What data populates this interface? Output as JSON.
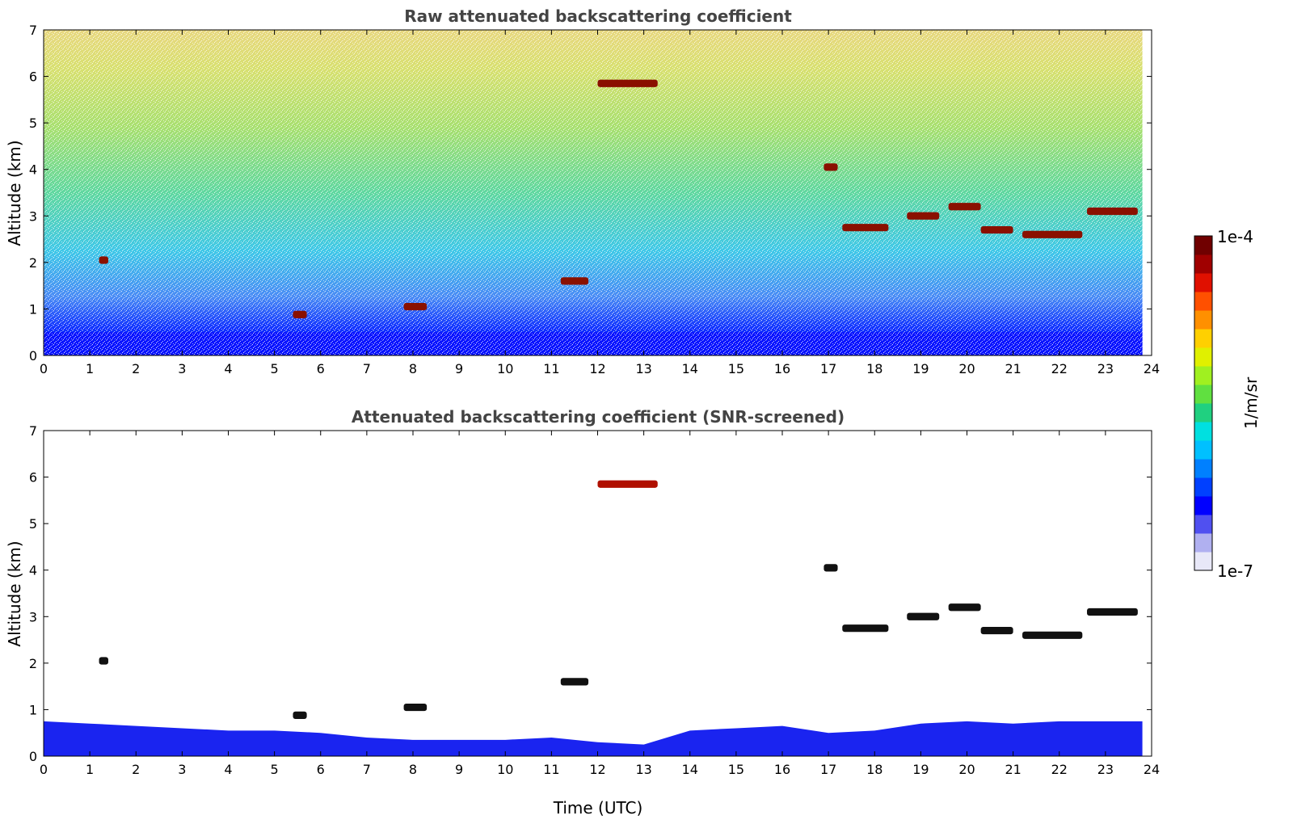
{
  "chart_data": [
    {
      "type": "heatmap",
      "title": "Raw attenuated backscattering coefficient",
      "xlabel": "",
      "ylabel": "Altitude (km)",
      "xlim": [
        0,
        24
      ],
      "ylim": [
        0,
        7
      ],
      "xticks": [
        "0",
        "1",
        "2",
        "3",
        "4",
        "5",
        "6",
        "7",
        "8",
        "9",
        "10",
        "11",
        "12",
        "13",
        "14",
        "15",
        "16",
        "17",
        "18",
        "19",
        "20",
        "21",
        "22",
        "23",
        "24"
      ],
      "yticks": [
        "0",
        "1",
        "2",
        "3",
        "4",
        "5",
        "6",
        "7"
      ],
      "data_end_time": 23.8,
      "features": [
        {
          "t0": 12.0,
          "t1": 13.3,
          "z": 5.85,
          "level": "high"
        },
        {
          "t0": 1.2,
          "t1": 1.4,
          "z": 2.05,
          "level": "high"
        },
        {
          "t0": 5.4,
          "t1": 5.7,
          "z": 0.88,
          "level": "high"
        },
        {
          "t0": 7.8,
          "t1": 8.3,
          "z": 1.05,
          "level": "high"
        },
        {
          "t0": 11.2,
          "t1": 11.8,
          "z": 1.6,
          "level": "high"
        },
        {
          "t0": 16.9,
          "t1": 17.2,
          "z": 4.05,
          "level": "high"
        },
        {
          "t0": 17.3,
          "t1": 18.3,
          "z": 2.75,
          "level": "high"
        },
        {
          "t0": 18.7,
          "t1": 19.4,
          "z": 3.0,
          "level": "high"
        },
        {
          "t0": 19.6,
          "t1": 20.3,
          "z": 3.2,
          "level": "high"
        },
        {
          "t0": 20.3,
          "t1": 21.0,
          "z": 2.7,
          "level": "high"
        },
        {
          "t0": 21.2,
          "t1": 22.5,
          "z": 2.6,
          "level": "high"
        },
        {
          "t0": 22.6,
          "t1": 23.7,
          "z": 3.1,
          "level": "high"
        }
      ]
    },
    {
      "type": "heatmap",
      "title": "Attenuated backscattering coefficient (SNR-screened)",
      "xlabel": "Time (UTC)",
      "ylabel": "Altitude (km)",
      "xlim": [
        0,
        24
      ],
      "ylim": [
        0,
        7
      ],
      "xticks": [
        "0",
        "1",
        "2",
        "3",
        "4",
        "5",
        "6",
        "7",
        "8",
        "9",
        "10",
        "11",
        "12",
        "13",
        "14",
        "15",
        "16",
        "17",
        "18",
        "19",
        "20",
        "21",
        "22",
        "23",
        "24"
      ],
      "yticks": [
        "0",
        "1",
        "2",
        "3",
        "4",
        "5",
        "6",
        "7"
      ],
      "data_end_time": 23.8,
      "boundary_layer_top_km": [
        [
          0,
          0.75
        ],
        [
          1,
          0.7
        ],
        [
          2,
          0.65
        ],
        [
          3,
          0.6
        ],
        [
          4,
          0.55
        ],
        [
          5,
          0.55
        ],
        [
          6,
          0.5
        ],
        [
          7,
          0.4
        ],
        [
          8,
          0.35
        ],
        [
          9,
          0.35
        ],
        [
          10,
          0.35
        ],
        [
          11,
          0.4
        ],
        [
          12,
          0.3
        ],
        [
          13,
          0.25
        ],
        [
          14,
          0.55
        ],
        [
          15,
          0.6
        ],
        [
          16,
          0.65
        ],
        [
          17,
          0.5
        ],
        [
          18,
          0.55
        ],
        [
          19,
          0.7
        ],
        [
          20,
          0.75
        ],
        [
          21,
          0.7
        ],
        [
          22,
          0.75
        ],
        [
          23,
          0.75
        ],
        [
          23.8,
          0.75
        ]
      ]
    }
  ],
  "colorbar": {
    "max_label": "1e-4",
    "min_label": "1e-7",
    "label": "1/m/sr",
    "colors": [
      "#e8e8f8",
      "#b0b0f0",
      "#5050f0",
      "#0000ff",
      "#0040ff",
      "#0080ff",
      "#00c0ff",
      "#00e0e0",
      "#20d080",
      "#60e040",
      "#a0f020",
      "#e0f000",
      "#ffd000",
      "#ff9000",
      "#ff5000",
      "#e01000",
      "#a00000",
      "#700000"
    ]
  }
}
